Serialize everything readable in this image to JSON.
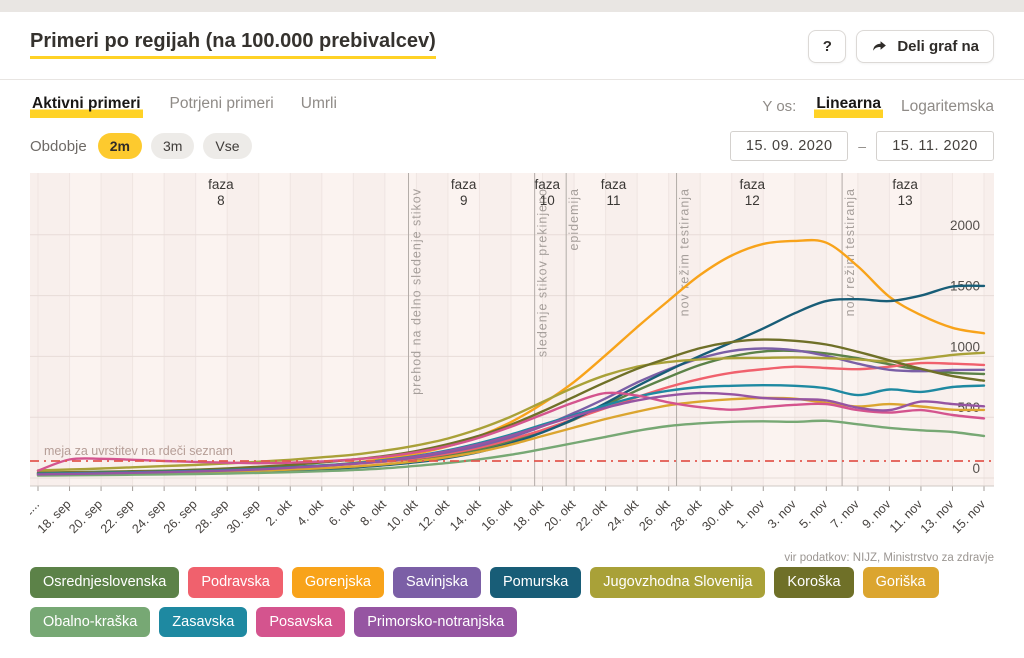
{
  "header": {
    "title": "Primeri po regijah (na 100.000 prebivalcev)",
    "help_label": "?",
    "share_label": "Deli graf na"
  },
  "tabs": [
    {
      "label": "Aktivni primeri",
      "active": true
    },
    {
      "label": "Potrjeni primeri",
      "active": false
    },
    {
      "label": "Umrli",
      "active": false
    }
  ],
  "yaxis_switch": {
    "label": "Y os:",
    "options": [
      {
        "label": "Linearna",
        "active": true
      },
      {
        "label": "Logaritemska",
        "active": false
      }
    ]
  },
  "period": {
    "label": "Obdobje",
    "options": [
      {
        "label": "2m",
        "active": true
      },
      {
        "label": "3m",
        "active": false
      },
      {
        "label": "Vse",
        "active": false
      }
    ],
    "from": "15. 09. 2020",
    "separator": "–",
    "to": "15. 11. 2020"
  },
  "source": "vir podatkov: NIJZ, Ministrstvo za zdravje",
  "colors": {
    "accent_yellow": "#ffd226",
    "plot_background": "#f8efec",
    "threshold_red": "#e2584f"
  },
  "chart_data": {
    "type": "line",
    "title": "Primeri po regijah (na 100.000 prebivalcev)",
    "xlabel": "",
    "ylabel": "",
    "ylim": [
      0,
      2500
    ],
    "y_ticks": [
      0,
      500,
      1000,
      1500,
      2000
    ],
    "x_days_span": 60,
    "x_tick_labels": [
      "1...",
      "18. sep",
      "20. sep",
      "22. sep",
      "24. sep",
      "26. sep",
      "28. sep",
      "30. sep",
      "2. okt",
      "4. okt",
      "6. okt",
      "8. okt",
      "10. okt",
      "12. okt",
      "14. okt",
      "16. okt",
      "18. okt",
      "20. okt",
      "22. okt",
      "24. okt",
      "26. okt",
      "28. okt",
      "30. okt",
      "1. nov",
      "3. nov",
      "5. nov",
      "7. nov",
      "9. nov",
      "11. nov",
      "13. nov",
      "15. nov"
    ],
    "threshold": {
      "value": 140,
      "label": "meja za uvrstitev na rdeči seznam",
      "color": "#e2584f"
    },
    "phases": [
      {
        "label": "faza",
        "number": "8",
        "day": 11.6
      },
      {
        "label": "faza",
        "number": "9",
        "day": 27
      },
      {
        "label": "faza",
        "number": "10",
        "day": 32.3
      },
      {
        "label": "faza",
        "number": "11",
        "day": 36.5
      },
      {
        "label": "faza",
        "number": "12",
        "day": 45.3
      },
      {
        "label": "faza",
        "number": "13",
        "day": 55
      }
    ],
    "events": [
      {
        "label": "prehod na delno sledenje stikov",
        "day": 23.5
      },
      {
        "label": "sledenje stikov prekinjeno",
        "day": 31.5
      },
      {
        "label": "epidemija",
        "day": 33.5
      },
      {
        "label": "nov režim testiranja",
        "day": 40.5
      },
      {
        "label": "nov režim testiranja",
        "day": 51
      }
    ],
    "series": [
      {
        "name": "Osrednjeslovenska",
        "color": "#5c8248",
        "values": [
          45,
          48,
          52,
          56,
          60,
          66,
          72,
          82,
          92,
          104,
          118,
          135,
          158,
          190,
          235,
          300,
          380,
          480,
          600,
          720,
          830,
          930,
          1000,
          1040,
          1045,
          1025,
          985,
          935,
          890,
          865,
          855
        ]
      },
      {
        "name": "Podravska",
        "color": "#f0616d",
        "values": [
          40,
          44,
          48,
          52,
          57,
          62,
          68,
          78,
          88,
          100,
          115,
          135,
          162,
          200,
          250,
          318,
          395,
          485,
          575,
          665,
          748,
          815,
          865,
          895,
          915,
          905,
          895,
          915,
          945,
          940,
          930
        ]
      },
      {
        "name": "Gorenjska",
        "color": "#f8a31a",
        "values": [
          30,
          33,
          36,
          40,
          45,
          50,
          58,
          68,
          82,
          100,
          125,
          158,
          200,
          260,
          345,
          460,
          610,
          790,
          1010,
          1240,
          1460,
          1670,
          1830,
          1925,
          1950,
          1935,
          1740,
          1490,
          1340,
          1235,
          1190
        ]
      },
      {
        "name": "Savinjska",
        "color": "#7b5fa6",
        "values": [
          35,
          38,
          42,
          46,
          50,
          56,
          64,
          74,
          86,
          100,
          118,
          140,
          170,
          212,
          265,
          335,
          425,
          535,
          655,
          785,
          895,
          985,
          1045,
          1065,
          1050,
          1005,
          940,
          890,
          878,
          888,
          890
        ]
      },
      {
        "name": "Pomurska",
        "color": "#185d77",
        "values": [
          25,
          27,
          30,
          33,
          36,
          40,
          45,
          52,
          60,
          72,
          86,
          105,
          130,
          165,
          215,
          285,
          375,
          485,
          615,
          755,
          885,
          1005,
          1115,
          1230,
          1355,
          1455,
          1470,
          1455,
          1500,
          1575,
          1580
        ]
      },
      {
        "name": "Jugovzhodna Slovenija",
        "color": "#a9a138",
        "values": [
          62,
          70,
          78,
          88,
          98,
          108,
          120,
          134,
          150,
          170,
          192,
          225,
          268,
          325,
          405,
          505,
          625,
          745,
          845,
          915,
          955,
          975,
          985,
          988,
          992,
          985,
          975,
          960,
          980,
          1012,
          1030
        ]
      },
      {
        "name": "Koroška",
        "color": "#6f7028",
        "values": [
          40,
          44,
          48,
          53,
          58,
          68,
          78,
          92,
          108,
          128,
          152,
          182,
          222,
          278,
          348,
          438,
          548,
          668,
          788,
          898,
          988,
          1068,
          1118,
          1138,
          1128,
          1098,
          1038,
          968,
          898,
          838,
          800
        ]
      },
      {
        "name": "Goriška",
        "color": "#dba52f",
        "values": [
          30,
          32,
          34,
          37,
          41,
          45,
          51,
          59,
          69,
          80,
          94,
          113,
          138,
          172,
          216,
          275,
          345,
          415,
          485,
          545,
          598,
          628,
          648,
          658,
          652,
          618,
          588,
          608,
          588,
          562,
          560
        ]
      },
      {
        "name": "Obalno-kraška",
        "color": "#77a874",
        "values": [
          20,
          22,
          24,
          27,
          30,
          33,
          37,
          42,
          48,
          56,
          66,
          80,
          100,
          124,
          154,
          192,
          238,
          288,
          338,
          388,
          428,
          450,
          462,
          466,
          462,
          470,
          442,
          412,
          392,
          378,
          345
        ]
      },
      {
        "name": "Zasavska",
        "color": "#1e89a1",
        "values": [
          35,
          39,
          43,
          47,
          52,
          58,
          66,
          76,
          88,
          103,
          122,
          148,
          182,
          228,
          288,
          358,
          438,
          518,
          598,
          668,
          718,
          748,
          758,
          763,
          758,
          738,
          682,
          728,
          708,
          748,
          760
        ]
      },
      {
        "name": "Posavska",
        "color": "#d4548e",
        "values": [
          60,
          152,
          158,
          150,
          140,
          132,
          126,
          122,
          126,
          136,
          152,
          176,
          212,
          262,
          332,
          422,
          522,
          622,
          698,
          678,
          622,
          582,
          562,
          582,
          602,
          608,
          558,
          538,
          558,
          518,
          490
        ]
      },
      {
        "name": "Primorsko-notranjska",
        "color": "#9655a2",
        "values": [
          30,
          34,
          38,
          43,
          48,
          54,
          61,
          71,
          84,
          99,
          118,
          143,
          178,
          222,
          278,
          348,
          428,
          508,
          578,
          638,
          678,
          698,
          688,
          658,
          648,
          638,
          578,
          558,
          628,
          608,
          590
        ]
      }
    ]
  }
}
